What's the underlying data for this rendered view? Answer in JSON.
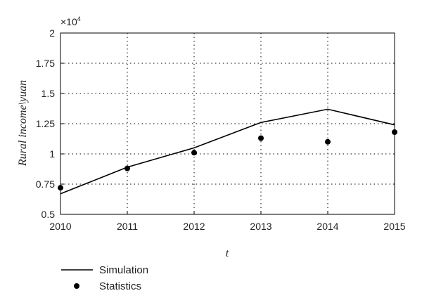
{
  "chart_data": {
    "type": "line",
    "title": "",
    "xlabel": "t",
    "ylabel": "Rural income\\yuan",
    "y_multiplier_label": "×10",
    "y_multiplier_exponent": "4",
    "xlim": [
      2010,
      2015
    ],
    "ylim": [
      0.5,
      2
    ],
    "x_ticks": [
      2010,
      2011,
      2012,
      2013,
      2014,
      2015
    ],
    "x_tick_labels": [
      "2010",
      "2011",
      "2012",
      "2013",
      "2014",
      "2015"
    ],
    "y_ticks": [
      0.5,
      0.75,
      1,
      1.25,
      1.5,
      1.75,
      2
    ],
    "y_tick_labels": [
      "0.5",
      "0.75",
      "1",
      "1.25",
      "1.5",
      "1.75",
      "2"
    ],
    "grid": true,
    "legend_position": "bottom-left, below plot",
    "series": [
      {
        "name": "Simulation",
        "style": "line",
        "color": "#000000",
        "x": [
          2010,
          2011,
          2012,
          2013,
          2014,
          2015
        ],
        "values": [
          0.67,
          0.89,
          1.05,
          1.26,
          1.37,
          1.24
        ]
      },
      {
        "name": "Statistics",
        "style": "marker",
        "color": "#000000",
        "x": [
          2010,
          2011,
          2012,
          2013,
          2014,
          2015
        ],
        "values": [
          0.72,
          0.88,
          1.01,
          1.13,
          1.1,
          1.18
        ]
      }
    ]
  }
}
